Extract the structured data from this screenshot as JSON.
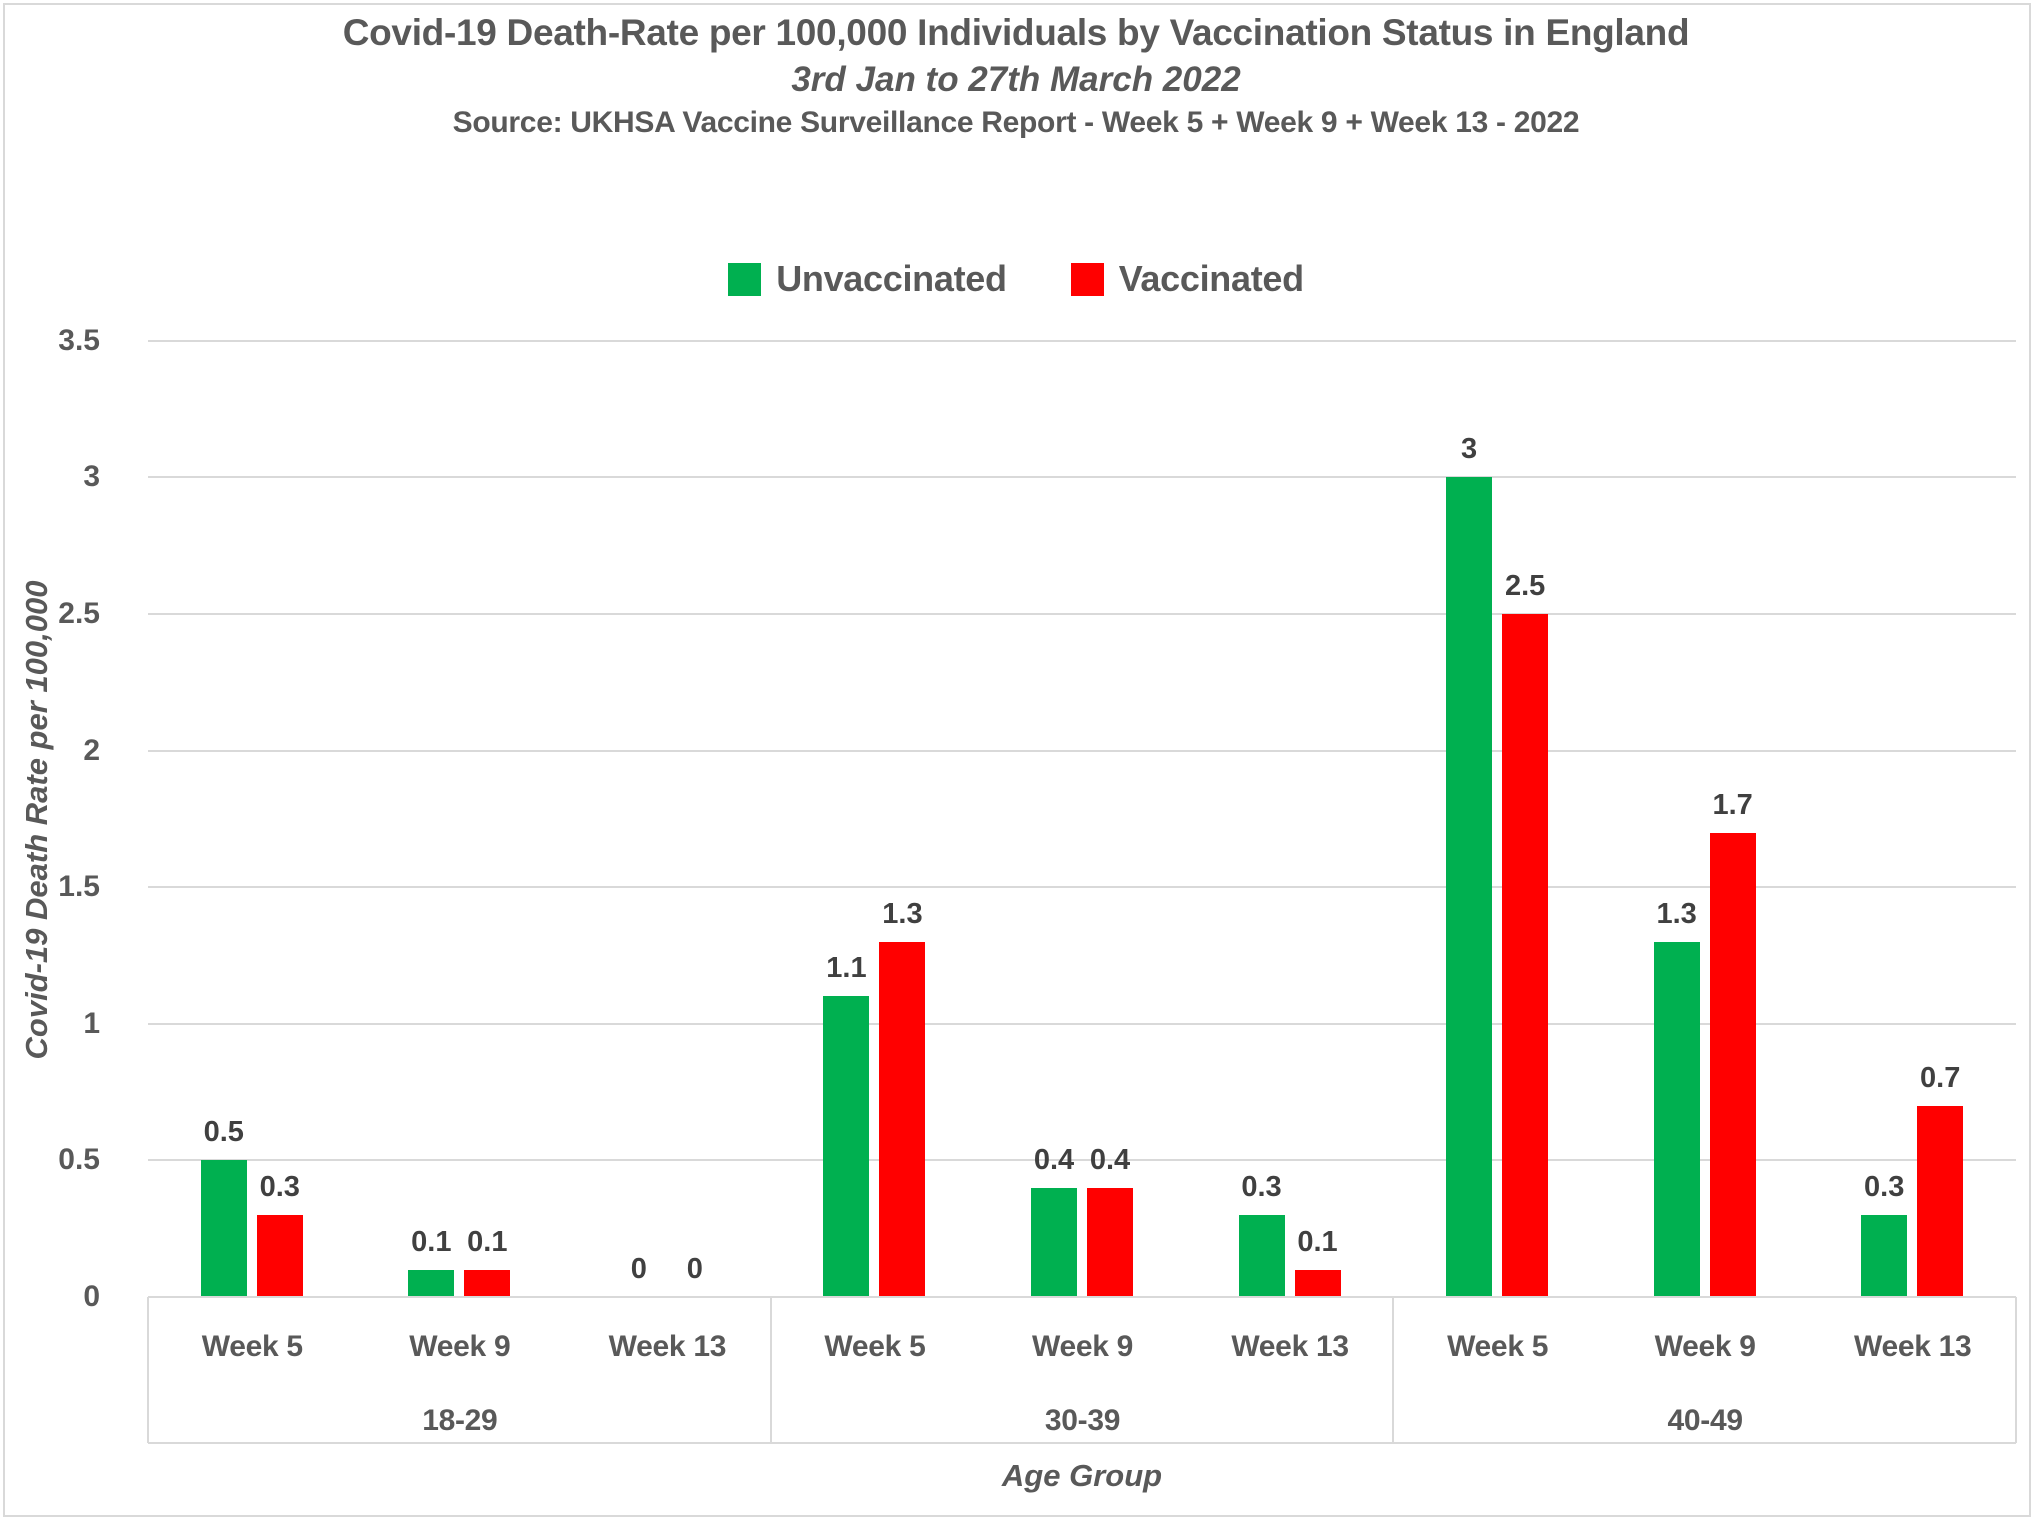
{
  "chart_data": {
    "type": "bar",
    "title": "Covid-19 Death-Rate per 100,000 Individuals by Vaccination Status in England",
    "subtitle": "3rd Jan to 27th March 2022",
    "source": "Source: UKHSA Vaccine Surveillance Report - Week 5 + Week 9 + Week 13 - 2022",
    "ylabel": "Covid-19 Death Rate per 100,000",
    "xlabel": "Age Group",
    "ylim": [
      0,
      3.5
    ],
    "yticks": [
      3.5,
      3,
      2.5,
      2,
      1.5,
      1,
      0.5,
      0
    ],
    "grid": true,
    "legend_position": "top-center",
    "group_labels": [
      "18-29",
      "30-39",
      "40-49"
    ],
    "week_labels": [
      "Week 5",
      "Week 9",
      "Week 13"
    ],
    "series": [
      {
        "name": "Unvaccinated",
        "color": "#00B050",
        "values": [
          [
            0.5,
            0.1,
            0
          ],
          [
            1.1,
            0.4,
            0.3
          ],
          [
            3,
            1.3,
            0.3
          ]
        ]
      },
      {
        "name": "Vaccinated",
        "color": "#FF0000",
        "values": [
          [
            0.3,
            0.1,
            0
          ],
          [
            1.3,
            0.4,
            0.1
          ],
          [
            2.5,
            1.7,
            0.7
          ]
        ]
      }
    ],
    "colors": {
      "text": "#595959",
      "gridline": "#D9D9D9"
    }
  }
}
